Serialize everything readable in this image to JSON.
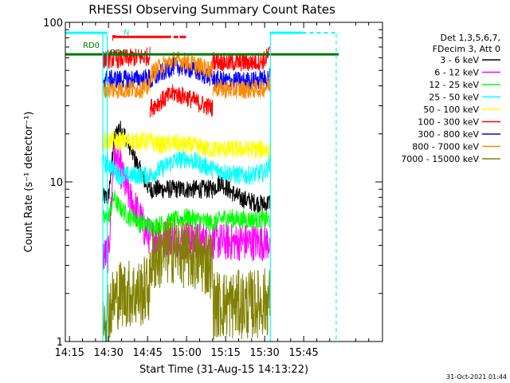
{
  "chart_data": {
    "type": "line",
    "title": "RHESSI Observing Summary Count Rates",
    "xlabel": "Start Time (31-Aug-15 14:13:22)",
    "ylabel": "Count Rate (s⁻¹ detector⁻¹)",
    "yscale": "log",
    "xlim_min": [
      13.4,
      135.3
    ],
    "ylim": [
      1,
      100
    ],
    "x_ticks": [
      {
        "minute": 15,
        "label": "14:15"
      },
      {
        "minute": 30,
        "label": "14:30"
      },
      {
        "minute": 45,
        "label": "14:45"
      },
      {
        "minute": 60,
        "label": "15:00"
      },
      {
        "minute": 75,
        "label": "15:15"
      },
      {
        "minute": 90,
        "label": "15:30"
      },
      {
        "minute": 105,
        "label": "15:45"
      }
    ],
    "y_ticks": [
      {
        "value": 1,
        "label": "1"
      },
      {
        "value": 10,
        "label": "10"
      },
      {
        "value": 100,
        "label": "100"
      }
    ],
    "legend_header": [
      "Det 1,3,5,6,7,",
      "FDecim 3, Att 0"
    ],
    "series": [
      {
        "name": "3 - 6 keV",
        "color": "#000000",
        "seg1": [
          [
            27.8,
            8
          ],
          [
            30,
            8
          ],
          [
            32,
            18
          ],
          [
            34,
            22
          ],
          [
            36,
            20
          ],
          [
            38,
            17
          ],
          [
            40,
            14
          ],
          [
            42,
            12
          ],
          [
            44,
            10
          ],
          [
            46,
            9
          ]
        ],
        "seg2": [
          [
            46,
            9
          ],
          [
            60,
            9
          ],
          [
            70,
            9
          ]
        ],
        "seg3": [
          [
            70,
            9
          ],
          [
            73,
            10
          ],
          [
            76,
            9
          ],
          [
            80,
            8
          ],
          [
            85,
            7.5
          ],
          [
            90,
            7.2
          ],
          [
            92,
            7.5
          ]
        ]
      },
      {
        "name": "6 - 12 keV",
        "color": "#ff00ff",
        "seg1": [
          [
            27.8,
            3.5
          ],
          [
            30,
            3.5
          ],
          [
            32,
            14
          ],
          [
            34,
            13
          ],
          [
            36,
            10
          ],
          [
            38,
            8
          ],
          [
            40,
            7
          ],
          [
            42,
            6
          ],
          [
            44,
            5
          ],
          [
            46,
            4.5
          ]
        ],
        "seg2": [
          [
            46,
            4.5
          ],
          [
            60,
            4.3
          ],
          [
            70,
            4.3
          ]
        ],
        "seg3": [
          [
            70,
            4.3
          ],
          [
            75,
            4.2
          ],
          [
            80,
            4.2
          ],
          [
            85,
            4.2
          ],
          [
            92,
            4.2
          ]
        ]
      },
      {
        "name": "12 - 25 keV",
        "color": "#00ff00",
        "seg1": [
          [
            27.8,
            5.8
          ],
          [
            30,
            6
          ],
          [
            32,
            8
          ],
          [
            34,
            7
          ],
          [
            36,
            6.5
          ],
          [
            38,
            6
          ],
          [
            40,
            6
          ],
          [
            42,
            5.5
          ],
          [
            44,
            5.5
          ],
          [
            46,
            5.2
          ]
        ],
        "seg2": [
          [
            46,
            5.2
          ],
          [
            60,
            6
          ],
          [
            70,
            5.5
          ]
        ],
        "seg3": [
          [
            70,
            5.5
          ],
          [
            75,
            6
          ],
          [
            80,
            5.8
          ],
          [
            85,
            5.8
          ],
          [
            92,
            5.8
          ]
        ]
      },
      {
        "name": "25 - 50 keV",
        "color": "#00ffff",
        "seg1": [
          [
            27.8,
            13
          ],
          [
            30,
            13
          ],
          [
            32,
            12
          ],
          [
            34,
            11
          ],
          [
            36,
            11
          ],
          [
            38,
            11
          ],
          [
            40,
            11
          ],
          [
            42,
            11
          ],
          [
            44,
            11
          ],
          [
            46,
            11
          ]
        ],
        "seg2": [
          [
            46,
            11
          ],
          [
            50,
            12
          ],
          [
            55,
            13.5
          ],
          [
            60,
            14
          ],
          [
            65,
            13
          ],
          [
            70,
            12
          ]
        ],
        "seg3": [
          [
            70,
            12
          ],
          [
            75,
            11.5
          ],
          [
            80,
            11
          ],
          [
            85,
            11
          ],
          [
            90,
            11.5
          ],
          [
            92,
            13
          ]
        ]
      },
      {
        "name": "50 - 100 keV",
        "color": "#ffff00",
        "seg1": [
          [
            27.8,
            18
          ],
          [
            32,
            18
          ],
          [
            36,
            18
          ],
          [
            40,
            18
          ],
          [
            46,
            18
          ]
        ],
        "seg2": [
          [
            46,
            18
          ],
          [
            50,
            17
          ],
          [
            55,
            17.5
          ],
          [
            60,
            17
          ],
          [
            65,
            16.5
          ],
          [
            70,
            16
          ]
        ],
        "seg3": [
          [
            70,
            16
          ],
          [
            80,
            16
          ],
          [
            92,
            16
          ]
        ]
      },
      {
        "name": "100 - 300 keV",
        "color": "#ff0000",
        "seg1": [
          [
            27.8,
            58
          ],
          [
            30,
            59
          ],
          [
            35,
            59
          ],
          [
            40,
            60
          ],
          [
            45,
            61
          ],
          [
            46,
            62
          ]
        ],
        "seg2": [
          [
            46,
            29
          ],
          [
            50,
            32
          ],
          [
            55,
            36
          ],
          [
            60,
            34
          ],
          [
            65,
            31
          ],
          [
            70,
            29
          ]
        ],
        "seg3": [
          [
            70,
            58
          ],
          [
            75,
            56
          ],
          [
            80,
            56
          ],
          [
            85,
            56
          ],
          [
            90,
            58
          ],
          [
            92,
            64
          ]
        ]
      },
      {
        "name": "300 - 800 keV",
        "color": "#0000ff",
        "seg1": [
          [
            27.8,
            44
          ],
          [
            32,
            44
          ],
          [
            36,
            44
          ],
          [
            40,
            44
          ],
          [
            46,
            45
          ]
        ],
        "seg2": [
          [
            46,
            42
          ],
          [
            50,
            48
          ],
          [
            55,
            53
          ],
          [
            60,
            52
          ],
          [
            65,
            48
          ],
          [
            70,
            45
          ]
        ],
        "seg3": [
          [
            70,
            44
          ],
          [
            75,
            43
          ],
          [
            80,
            43
          ],
          [
            85,
            43
          ],
          [
            90,
            44
          ],
          [
            92,
            46
          ]
        ]
      },
      {
        "name": "800 - 7000 keV",
        "color": "#ff8800",
        "seg1": [
          [
            27.8,
            38
          ],
          [
            32,
            38
          ],
          [
            36,
            38
          ],
          [
            40,
            38
          ],
          [
            46,
            39
          ]
        ],
        "seg2": [
          [
            46,
            47
          ],
          [
            50,
            53
          ],
          [
            55,
            58
          ],
          [
            60,
            57
          ],
          [
            65,
            53
          ],
          [
            70,
            50
          ]
        ],
        "seg3": [
          [
            70,
            39
          ],
          [
            75,
            38
          ],
          [
            80,
            38
          ],
          [
            85,
            38
          ],
          [
            90,
            39
          ],
          [
            92,
            41
          ]
        ]
      },
      {
        "name": "7000 - 15000 keV",
        "color": "#808000",
        "seg1": [
          [
            27.8,
            1.6
          ],
          [
            30,
            1.6
          ],
          [
            34,
            2
          ],
          [
            38,
            2
          ],
          [
            42,
            2
          ],
          [
            46,
            2.2
          ]
        ],
        "seg2": [
          [
            46,
            3.2
          ],
          [
            50,
            3.5
          ],
          [
            55,
            3.8
          ],
          [
            60,
            3.5
          ],
          [
            65,
            3.3
          ],
          [
            70,
            3
          ]
        ],
        "seg3": [
          [
            70,
            1.7
          ],
          [
            75,
            1.7
          ],
          [
            80,
            1.7
          ],
          [
            85,
            1.7
          ],
          [
            92,
            1.8
          ]
        ]
      }
    ],
    "annotations": [
      {
        "text": "N",
        "color": "#00e8e8"
      },
      {
        "text": "F",
        "color": "#ff0000"
      },
      {
        "text": "RD0",
        "color": "#007700"
      },
      {
        "text": "RD6",
        "color": "#007700"
      }
    ],
    "flag_bars": {
      "saa_cyan": [
        {
          "start": 13.4,
          "end": 29.5,
          "level": 86
        },
        {
          "start": 92,
          "end": 104.5,
          "level": 86
        }
      ],
      "saa_dashed": [
        {
          "start": 104.5,
          "end": 118.5,
          "level": 86
        }
      ],
      "flare_red": [
        {
          "start": 31.5,
          "end": 54.0,
          "level": 81
        },
        {
          "start": 55.0,
          "end": 56.8,
          "level": 81
        },
        {
          "start": 57.3,
          "end": 59.8,
          "level": 81
        }
      ],
      "decimation_green": [
        {
          "start": 13.4,
          "end": 118.5,
          "level": 63
        }
      ]
    },
    "vertical_markers": [
      {
        "minute": 27.8,
        "color": "#00ffff",
        "dash": false
      },
      {
        "minute": 29.5,
        "color": "#00ffff",
        "dash": false
      },
      {
        "minute": 92.2,
        "color": "#00ffff",
        "dash": false
      },
      {
        "minute": 117.5,
        "color": "#00ffff",
        "dash": true
      }
    ],
    "grid": false
  },
  "timestamp": "31-Oct-2021 01:44"
}
